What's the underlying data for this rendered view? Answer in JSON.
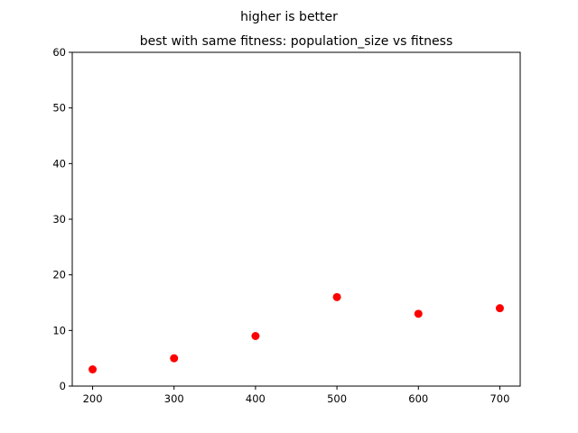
{
  "chart_data": {
    "type": "scatter",
    "suptitle": "higher is better",
    "title": "best with same fitness: population_size vs fitness",
    "xlabel": "",
    "ylabel": "",
    "x": [
      200,
      300,
      400,
      500,
      600,
      700
    ],
    "y": [
      3,
      5,
      9,
      16,
      13,
      14
    ],
    "xlim": [
      175,
      725
    ],
    "ylim": [
      0,
      60
    ],
    "xticks": [
      200,
      300,
      400,
      500,
      600,
      700
    ],
    "yticks": [
      0,
      10,
      20,
      30,
      40,
      50,
      60
    ],
    "marker_color": "#ff0000",
    "grid": false,
    "legend": "none"
  }
}
